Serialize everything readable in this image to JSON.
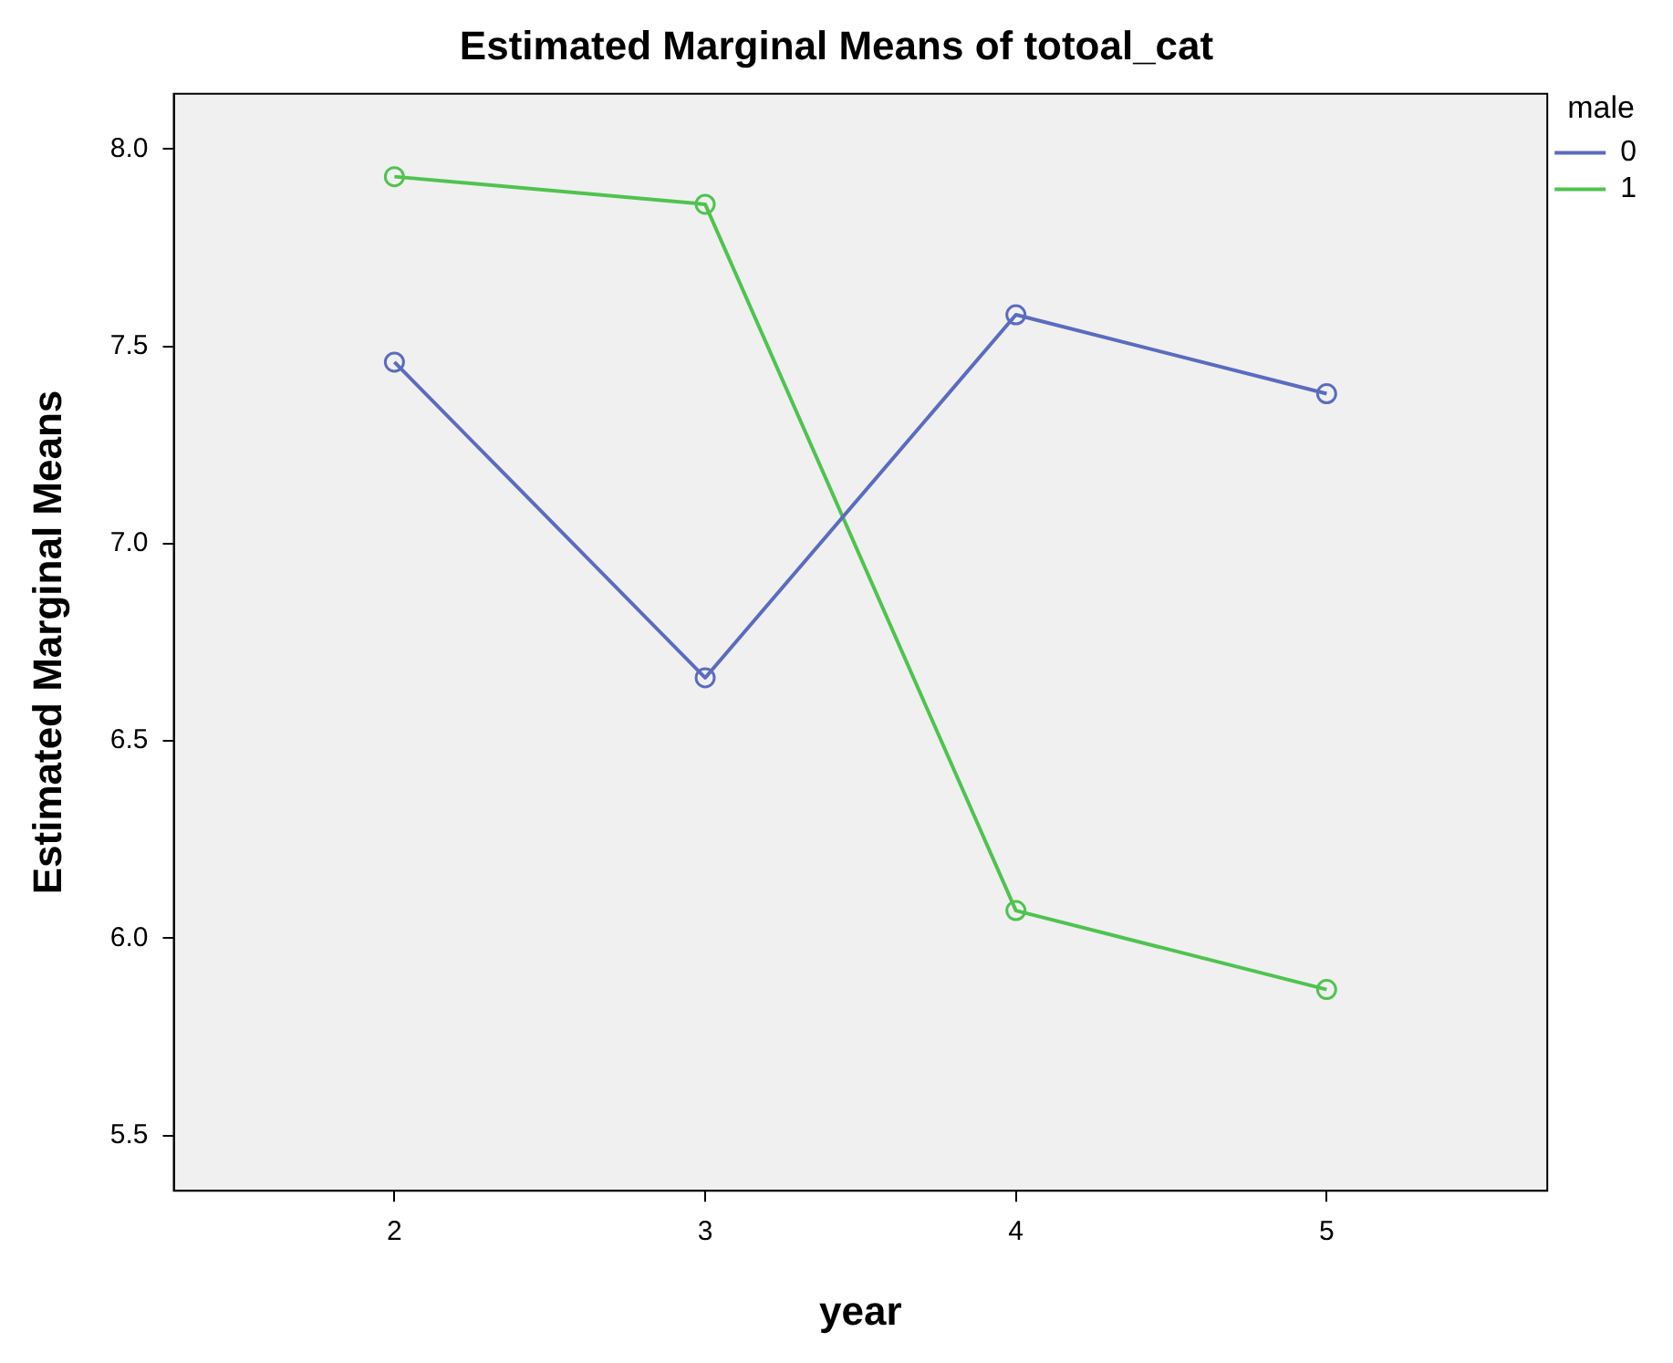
{
  "chart_data": {
    "type": "line",
    "title": "Estimated Marginal Means of totoal_cat",
    "xlabel": "year",
    "ylabel": "Estimated Marginal Means",
    "legend_title": "male",
    "x": [
      2,
      3,
      4,
      5
    ],
    "series": [
      {
        "name": "0",
        "color": "#5b6bbf",
        "values": [
          7.46,
          6.66,
          7.58,
          7.38
        ]
      },
      {
        "name": "1",
        "color": "#4fc34f",
        "values": [
          7.93,
          7.86,
          6.07,
          5.87
        ]
      }
    ],
    "xlim": [
      1.29,
      5.71
    ],
    "xticks": [
      2,
      3,
      4,
      5
    ],
    "ylim": [
      5.36,
      8.14
    ],
    "yticks": [
      5.5,
      {
        "value": 6,
        "label": "6.0"
      },
      6.5,
      {
        "value": 7,
        "label": "7.0"
      },
      7.5,
      {
        "value": 8,
        "label": "8.0"
      }
    ],
    "grid": false,
    "legend": "top right",
    "marker": "circle",
    "line_style": "solid"
  }
}
